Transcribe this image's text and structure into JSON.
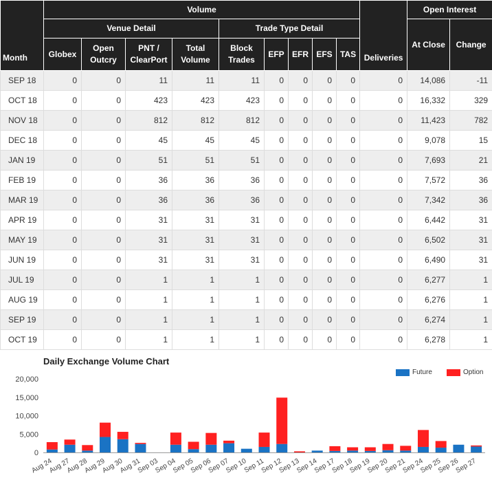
{
  "table": {
    "group_headers": {
      "volume": "Volume",
      "open_interest": "Open Interest"
    },
    "sub_headers": {
      "venue_detail": "Venue Detail",
      "trade_type_detail": "Trade Type Detail"
    },
    "columns": {
      "month": "Month",
      "globex": "Globex",
      "open_outcry": "Open Outcry",
      "pnt_clearport": "PNT / ClearPort",
      "total_volume": "Total Volume",
      "block_trades": "Block Trades",
      "efp": "EFP",
      "efr": "EFR",
      "efs": "EFS",
      "tas": "TAS",
      "deliveries": "Deliveries",
      "at_close": "At Close",
      "change": "Change"
    },
    "rows": [
      [
        "SEP 18",
        "0",
        "0",
        "11",
        "11",
        "11",
        "0",
        "0",
        "0",
        "0",
        "0",
        "14,086",
        "-11"
      ],
      [
        "OCT 18",
        "0",
        "0",
        "423",
        "423",
        "423",
        "0",
        "0",
        "0",
        "0",
        "0",
        "16,332",
        "329"
      ],
      [
        "NOV 18",
        "0",
        "0",
        "812",
        "812",
        "812",
        "0",
        "0",
        "0",
        "0",
        "0",
        "11,423",
        "782"
      ],
      [
        "DEC 18",
        "0",
        "0",
        "45",
        "45",
        "45",
        "0",
        "0",
        "0",
        "0",
        "0",
        "9,078",
        "15"
      ],
      [
        "JAN 19",
        "0",
        "0",
        "51",
        "51",
        "51",
        "0",
        "0",
        "0",
        "0",
        "0",
        "7,693",
        "21"
      ],
      [
        "FEB 19",
        "0",
        "0",
        "36",
        "36",
        "36",
        "0",
        "0",
        "0",
        "0",
        "0",
        "7,572",
        "36"
      ],
      [
        "MAR 19",
        "0",
        "0",
        "36",
        "36",
        "36",
        "0",
        "0",
        "0",
        "0",
        "0",
        "7,342",
        "36"
      ],
      [
        "APR 19",
        "0",
        "0",
        "31",
        "31",
        "31",
        "0",
        "0",
        "0",
        "0",
        "0",
        "6,442",
        "31"
      ],
      [
        "MAY 19",
        "0",
        "0",
        "31",
        "31",
        "31",
        "0",
        "0",
        "0",
        "0",
        "0",
        "6,502",
        "31"
      ],
      [
        "JUN 19",
        "0",
        "0",
        "31",
        "31",
        "31",
        "0",
        "0",
        "0",
        "0",
        "0",
        "6,490",
        "31"
      ],
      [
        "JUL 19",
        "0",
        "0",
        "1",
        "1",
        "1",
        "0",
        "0",
        "0",
        "0",
        "0",
        "6,277",
        "1"
      ],
      [
        "AUG 19",
        "0",
        "0",
        "1",
        "1",
        "1",
        "0",
        "0",
        "0",
        "0",
        "0",
        "6,276",
        "1"
      ],
      [
        "SEP 19",
        "0",
        "0",
        "1",
        "1",
        "1",
        "0",
        "0",
        "0",
        "0",
        "0",
        "6,274",
        "1"
      ],
      [
        "OCT 19",
        "0",
        "0",
        "1",
        "1",
        "1",
        "0",
        "0",
        "0",
        "0",
        "0",
        "6,278",
        "1"
      ]
    ]
  },
  "chart_data": {
    "type": "bar",
    "stacked": true,
    "title": "Daily Exchange Volume Chart",
    "categories": [
      "Aug 24",
      "Aug 27",
      "Aug 28",
      "Aug 29",
      "Aug 30",
      "Aug 31",
      "Sep 03",
      "Sep 04",
      "Sep 05",
      "Sep 06",
      "Sep 07",
      "Sep 10",
      "Sep 11",
      "Sep 12",
      "Sep 13",
      "Sep 14",
      "Sep 17",
      "Sep 18",
      "Sep 19",
      "Sep 20",
      "Sep 21",
      "Sep 24",
      "Sep 25",
      "Sep 26",
      "Sep 27"
    ],
    "series": [
      {
        "name": "Future",
        "color": "#1a73c4",
        "values": [
          800,
          2100,
          500,
          4200,
          3600,
          2300,
          0,
          2100,
          900,
          2100,
          2500,
          1000,
          1500,
          2300,
          0,
          500,
          400,
          500,
          400,
          600,
          500,
          1500,
          1300,
          2100,
          1600
        ]
      },
      {
        "name": "Option",
        "color": "#ff2020",
        "values": [
          2000,
          1400,
          1500,
          3900,
          2000,
          300,
          0,
          3300,
          2000,
          3200,
          700,
          0,
          3900,
          12600,
          300,
          0,
          1300,
          900,
          1000,
          1700,
          1300,
          4600,
          1800,
          0,
          300
        ]
      }
    ],
    "yticks": [
      "0",
      "5,000",
      "10,000",
      "15,000",
      "20,000"
    ],
    "ylim": [
      0,
      20000
    ],
    "legend_position": "top-right",
    "grid": false
  }
}
